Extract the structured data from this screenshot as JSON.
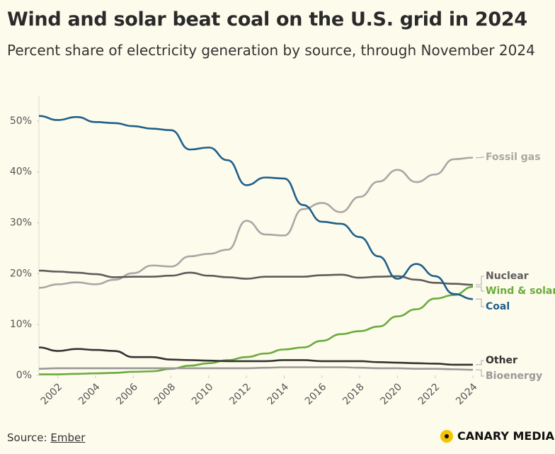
{
  "chart_data": {
    "type": "line",
    "title": "Wind and solar beat coal on the U.S. grid in 2024",
    "subtitle": "Percent share of electricity generation by source, through November 2024",
    "source_label": "Source:",
    "source": "Ember",
    "brand": "CANARY MEDIA",
    "x": [
      2001,
      2002,
      2003,
      2004,
      2005,
      2006,
      2007,
      2008,
      2009,
      2010,
      2011,
      2012,
      2013,
      2014,
      2015,
      2016,
      2017,
      2018,
      2019,
      2020,
      2021,
      2022,
      2023,
      2024
    ],
    "xlim": [
      2001,
      2024
    ],
    "xticks": [
      2002,
      2004,
      2006,
      2008,
      2010,
      2012,
      2014,
      2016,
      2018,
      2020,
      2022,
      2024
    ],
    "ylim": [
      0,
      55
    ],
    "yticks": [
      {
        "value": 0,
        "label": "0%"
      },
      {
        "value": 10,
        "label": "10%"
      },
      {
        "value": 20,
        "label": "20%"
      },
      {
        "value": 30,
        "label": "30%"
      },
      {
        "value": 40,
        "label": "40%"
      },
      {
        "value": 50,
        "label": "50%"
      }
    ],
    "series": [
      {
        "name": "Fossil gas",
        "color": "#a9a7a5",
        "values": [
          17.2,
          17.9,
          18.3,
          17.9,
          18.8,
          20.1,
          21.6,
          21.4,
          23.4,
          23.9,
          24.7,
          30.4,
          27.7,
          27.5,
          32.7,
          33.9,
          32.1,
          35.1,
          38.1,
          40.4,
          38.0,
          39.5,
          42.5,
          42.8
        ]
      },
      {
        "name": "Nuclear",
        "color": "#5e5c5b",
        "values": [
          20.6,
          20.4,
          20.2,
          19.9,
          19.3,
          19.4,
          19.4,
          19.6,
          20.2,
          19.6,
          19.3,
          19.0,
          19.4,
          19.4,
          19.4,
          19.7,
          19.8,
          19.2,
          19.4,
          19.5,
          18.8,
          18.2,
          18.0,
          17.8
        ]
      },
      {
        "name": "Wind & solar",
        "color": "#6aab3c",
        "values": [
          0.2,
          0.2,
          0.3,
          0.4,
          0.5,
          0.7,
          0.8,
          1.3,
          1.9,
          2.4,
          3.0,
          3.6,
          4.3,
          5.1,
          5.5,
          6.8,
          8.1,
          8.7,
          9.6,
          11.6,
          13.0,
          15.1,
          15.8,
          17.4
        ]
      },
      {
        "name": "Coal",
        "color": "#1f5f8b",
        "values": [
          51.0,
          50.2,
          50.8,
          49.8,
          49.6,
          49.0,
          48.5,
          48.2,
          44.4,
          44.8,
          42.3,
          37.4,
          38.9,
          38.7,
          33.5,
          30.2,
          29.8,
          27.2,
          23.4,
          19.0,
          21.9,
          19.5,
          16.0,
          15.0
        ]
      },
      {
        "name": "Other",
        "color": "#333333",
        "values": [
          5.5,
          4.8,
          5.2,
          5.0,
          4.8,
          3.6,
          3.6,
          3.1,
          3.0,
          2.9,
          2.8,
          2.8,
          2.8,
          3.0,
          3.0,
          2.8,
          2.8,
          2.8,
          2.6,
          2.5,
          2.4,
          2.3,
          2.1,
          2.1
        ]
      },
      {
        "name": "Bioenergy",
        "color": "#9b9997",
        "values": [
          1.3,
          1.4,
          1.4,
          1.4,
          1.4,
          1.4,
          1.4,
          1.4,
          1.4,
          1.4,
          1.4,
          1.4,
          1.5,
          1.6,
          1.6,
          1.6,
          1.6,
          1.5,
          1.4,
          1.4,
          1.3,
          1.3,
          1.2,
          1.1
        ]
      }
    ]
  }
}
